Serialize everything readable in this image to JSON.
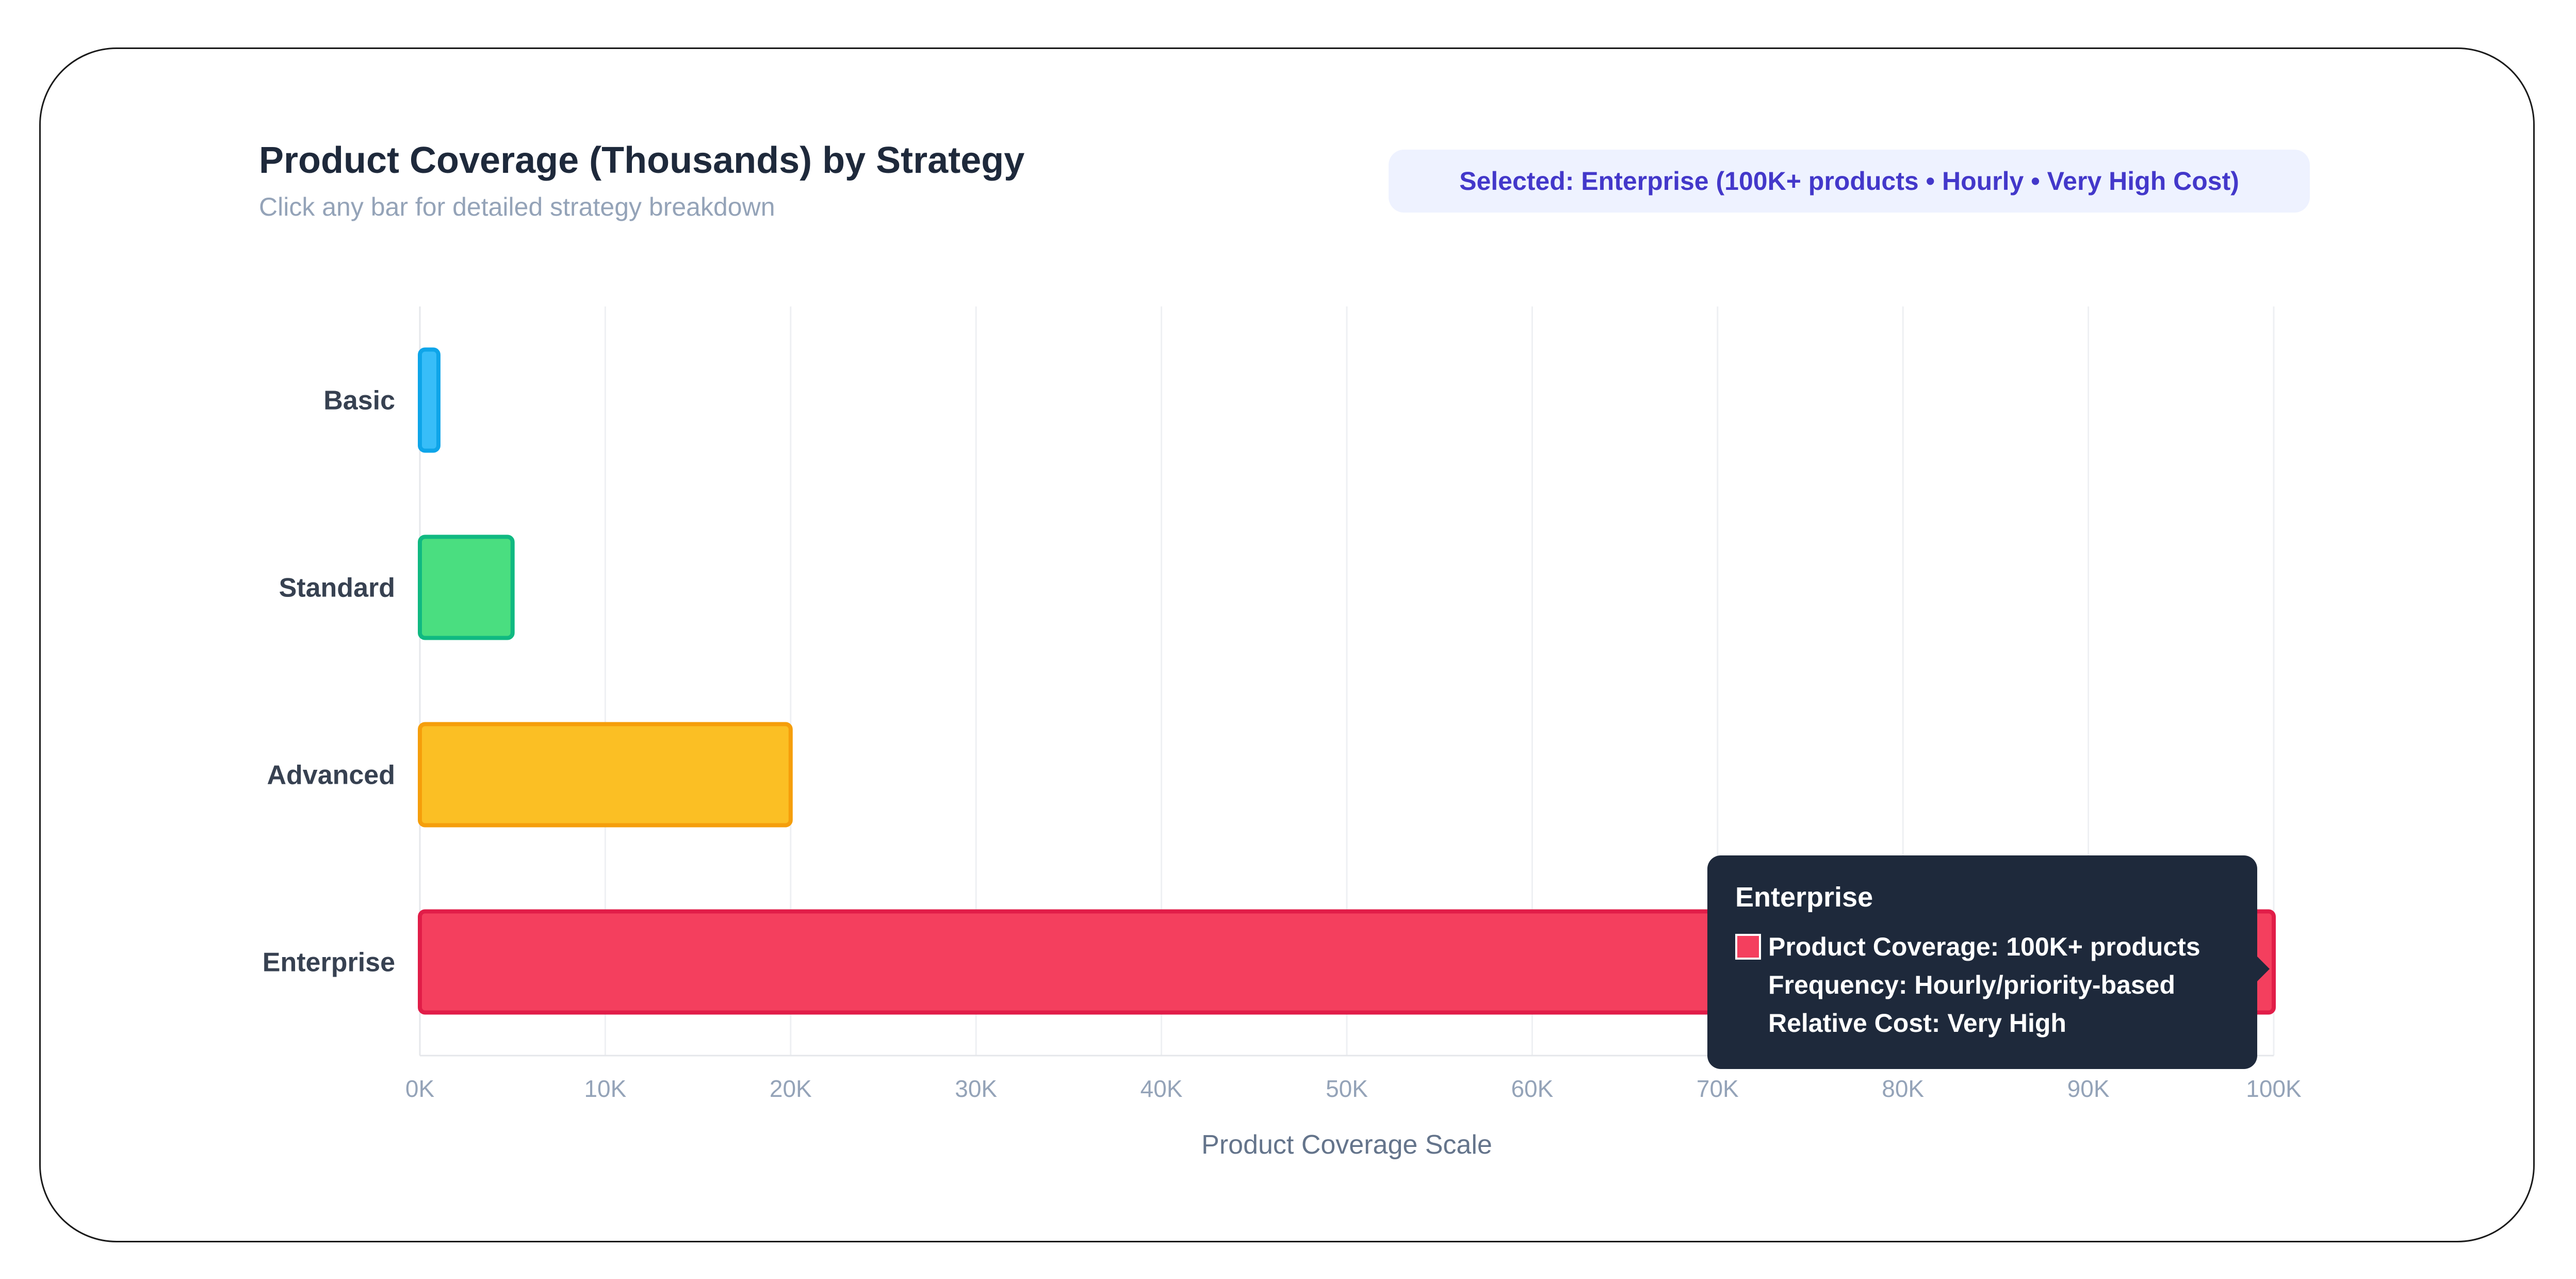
{
  "header": {
    "title": "Product Coverage (Thousands) by Strategy",
    "subtitle": "Click any bar for detailed strategy breakdown",
    "selected_badge": "Selected: Enterprise (100K+ products • Hourly • Very High Cost)"
  },
  "tooltip": {
    "title": "Enterprise",
    "lines": [
      "Product Coverage: 100K+ products",
      "Frequency: Hourly/priority-based",
      "Relative Cost: Very High"
    ],
    "swatch_color": "#f43f5e"
  },
  "chart_data": {
    "type": "bar",
    "orientation": "horizontal",
    "categories": [
      "Basic",
      "Standard",
      "Advanced",
      "Enterprise"
    ],
    "values": [
      1,
      5,
      20,
      100
    ],
    "colors": [
      "#38bdf8",
      "#4ade80",
      "#fbbf24",
      "#f43f5e"
    ],
    "border_colors": [
      "#0ea5e9",
      "#10b981",
      "#f59e0b",
      "#e11d48"
    ],
    "xlim": [
      0,
      100
    ],
    "xticks": [
      "0K",
      "10K",
      "20K",
      "30K",
      "40K",
      "50K",
      "60K",
      "70K",
      "80K",
      "90K",
      "100K"
    ],
    "xlabel": "Product Coverage Scale",
    "grid": "vertical"
  }
}
